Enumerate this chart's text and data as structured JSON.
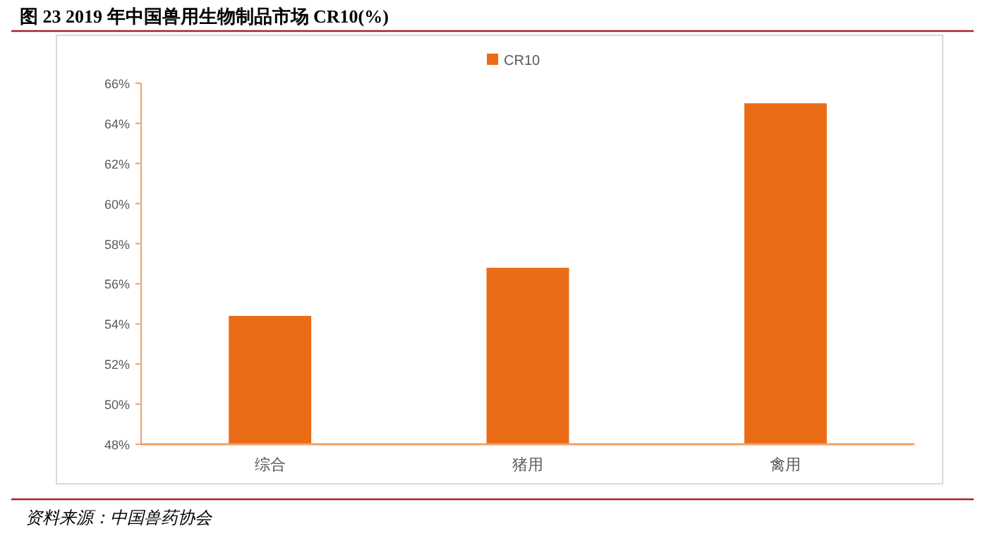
{
  "chart_data": {
    "type": "bar",
    "title": "图 23 2019 年中国兽用生物制品市场 CR10(%)",
    "categories": [
      "综合",
      "猪用",
      "禽用"
    ],
    "series": [
      {
        "name": "CR10",
        "color": "#eb6c16",
        "values": [
          54.4,
          56.8,
          65.0
        ]
      }
    ],
    "ylim": [
      48,
      66
    ],
    "yticks": [
      {
        "value": 48,
        "label": "48%"
      },
      {
        "value": 50,
        "label": "50%"
      },
      {
        "value": 52,
        "label": "52%"
      },
      {
        "value": 54,
        "label": "54%"
      },
      {
        "value": 56,
        "label": "56%"
      },
      {
        "value": 58,
        "label": "58%"
      },
      {
        "value": 60,
        "label": "60%"
      },
      {
        "value": 62,
        "label": "62%"
      },
      {
        "value": 64,
        "label": "64%"
      },
      {
        "value": 66,
        "label": "66%"
      }
    ],
    "grid": false,
    "legend": "top",
    "annotations": [
      "资料来源：中国兽药协会"
    ]
  }
}
